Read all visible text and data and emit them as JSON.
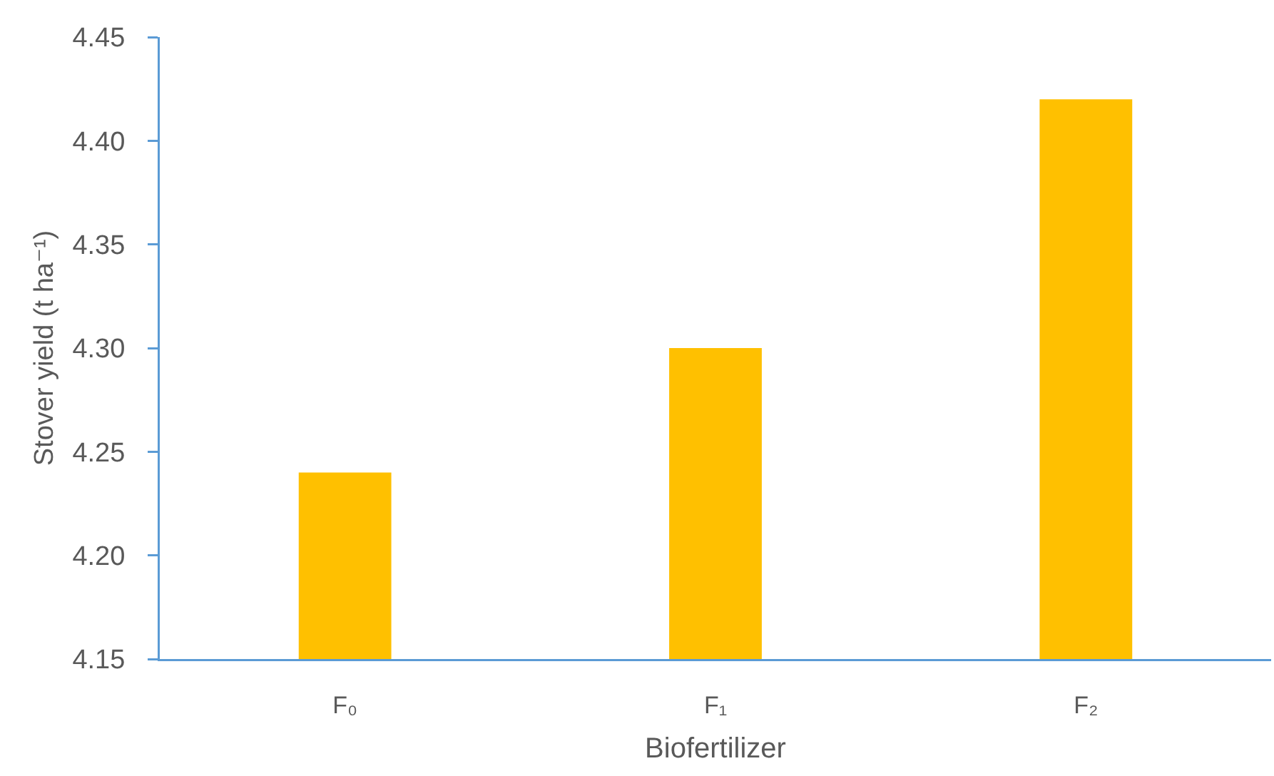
{
  "chart_data": {
    "type": "bar",
    "xlabel": "Biofertilizer",
    "ylabel": "Stover yield (t ha⁻¹)",
    "categories": [
      "F₀",
      "F₁",
      "F₂"
    ],
    "values": [
      4.24,
      4.3,
      4.42
    ],
    "color": "#ffc000",
    "ylim": [
      4.15,
      4.45
    ],
    "yticks": [
      4.15,
      {
        "value": 4.2,
        "label": "4.20"
      },
      4.25,
      {
        "value": 4.3,
        "label": "4.30"
      },
      4.35,
      {
        "value": 4.4,
        "label": "4.40"
      },
      4.45
    ]
  }
}
